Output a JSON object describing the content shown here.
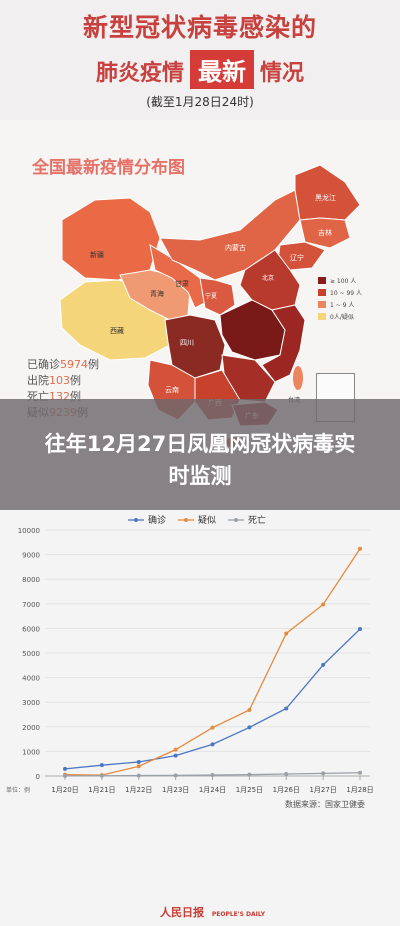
{
  "header": {
    "title_line1": "新型冠状病毒感染的",
    "title_line2_pre": "肺炎疫情",
    "title_line2_highlight": "最新",
    "title_line2_post": "情况",
    "subtitle": "(截至1月28日24时)"
  },
  "map": {
    "title": "全国最新疫情分布图",
    "stats": [
      {
        "label": "已确诊",
        "value": "5974",
        "unit": "例"
      },
      {
        "label": "出院",
        "value": "103",
        "unit": "例"
      },
      {
        "label": "死亡",
        "value": "132",
        "unit": "例"
      },
      {
        "label": "疑似",
        "value": "9239",
        "unit": "例"
      }
    ],
    "legend": [
      {
        "label": "≥ 100 人",
        "color": "#8b1c1c"
      },
      {
        "label": "10 ~ 99 人",
        "color": "#c8412d"
      },
      {
        "label": "1 ~ 9 人",
        "color": "#ea8560"
      },
      {
        "label": "0人/疑似",
        "color": "#f5d57a"
      }
    ],
    "provinces": [
      "新疆",
      "西藏",
      "青海",
      "甘肃",
      "内蒙古",
      "黑龙江",
      "吉林",
      "辽宁",
      "北京",
      "宁夏",
      "四川",
      "云南",
      "广西",
      "广东",
      "台湾"
    ]
  },
  "overlay": {
    "title": "往年12月27日凤凰网冠状病毒实时监测"
  },
  "chart_data": {
    "type": "line",
    "categories": [
      "1月20日",
      "1月21日",
      "1月22日",
      "1月23日",
      "1月24日",
      "1月25日",
      "1月26日",
      "1月27日",
      "1月28日"
    ],
    "series": [
      {
        "name": "确诊",
        "color": "#4a76c4",
        "values": [
          291,
          440,
          571,
          830,
          1287,
          1975,
          2744,
          4515,
          5974
        ]
      },
      {
        "name": "疑似",
        "color": "#e68a3f",
        "values": [
          54,
          37,
          393,
          1072,
          1965,
          2684,
          5794,
          6973,
          9239
        ]
      },
      {
        "name": "死亡",
        "color": "#9aa0a8",
        "values": [
          6,
          9,
          17,
          25,
          41,
          56,
          80,
          106,
          132
        ]
      }
    ],
    "ylim": [
      0,
      10000
    ],
    "yticks": [
      0,
      1000,
      2000,
      3000,
      4000,
      5000,
      6000,
      7000,
      8000,
      9000,
      10000
    ],
    "grid": true,
    "legend_position": "top",
    "source": "数据来源：国家卫健委",
    "unit_label": "单位：例"
  },
  "footer": {
    "logo": "人民日报",
    "logo_sub": "PEOPLE'S DAILY"
  }
}
